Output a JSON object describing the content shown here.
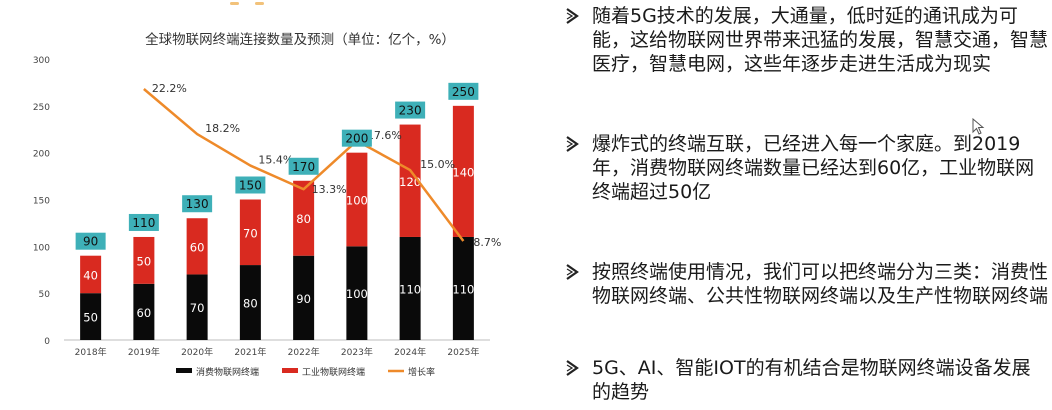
{
  "chart_data": {
    "type": "bar",
    "title": "全球物联网终端连接数量及预测（单位：亿个，%）",
    "categories": [
      "2018年",
      "2019年",
      "2020年",
      "2021年",
      "2022年",
      "2023年",
      "2024年",
      "2025年"
    ],
    "ylim": [
      0,
      300
    ],
    "yticks": [
      0,
      50,
      100,
      150,
      200,
      250,
      300
    ],
    "grid": false,
    "stacked": true,
    "legend_position": "bottom",
    "series": [
      {
        "name": "消费物联网终端",
        "color": "#0a0a0a",
        "values": [
          50,
          60,
          70,
          80,
          90,
          100,
          110,
          110
        ]
      },
      {
        "name": "工业物联网终端",
        "color": "#d92a20",
        "values": [
          40,
          50,
          60,
          70,
          80,
          100,
          120,
          140
        ]
      }
    ],
    "totals": [
      90,
      110,
      130,
      150,
      170,
      200,
      230,
      250
    ],
    "growth": {
      "name": "增长率",
      "color": "#ee8a2a",
      "categories": [
        "2019年",
        "2020年",
        "2021年",
        "2022年",
        "2023年",
        "2024年",
        "2025年"
      ],
      "values": [
        22.2,
        18.2,
        15.4,
        13.3,
        17.6,
        15.0,
        8.7
      ],
      "labels": [
        "22.2%",
        "18.2%",
        "15.4%",
        "13.3%",
        "17.6%",
        "15.0%",
        "8.7%"
      ]
    },
    "total_box_color": "#3eb0b8"
  },
  "bullets": [
    {
      "text": "随着5G技术的发展，大通量，低时延的通讯成为可能，这给物联网世界带来迅猛的发展，智慧交通，智慧医疗，智慧电网，这些年逐步走进生活成为现实"
    },
    {
      "text": "爆炸式的终端互联，已经进入每一个家庭。到2019年，消费物联网终端数量已经达到60亿，工业物联网终端超过50亿"
    },
    {
      "text": "按照终端使用情况，我们可以把终端分为三类：消费性物联网终端、公共性物联网终端以及生产性物联网终端"
    },
    {
      "text": "5G、AI、智能IOT的有机结合是物联网终端设备发展的趋势"
    }
  ]
}
